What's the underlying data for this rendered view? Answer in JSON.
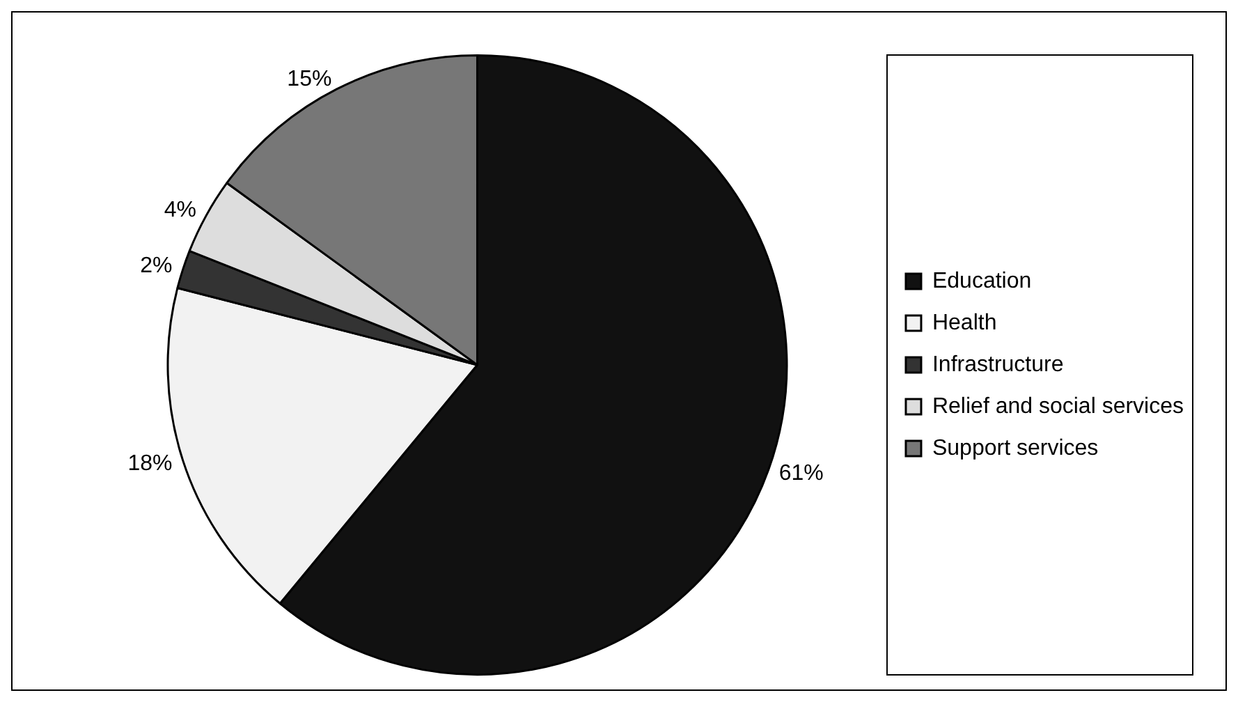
{
  "chart_data": {
    "type": "pie",
    "categories": [
      "Education",
      "Health",
      "Infrastructure",
      "Relief and social services",
      "Support services"
    ],
    "values": [
      61,
      18,
      2,
      4,
      15
    ],
    "value_labels": [
      "61%",
      "18%",
      "2%",
      "4%",
      "15%"
    ],
    "colors": [
      "#111111",
      "#f2f2f2",
      "#333333",
      "#dddddd",
      "#777777"
    ],
    "legend": "right"
  }
}
